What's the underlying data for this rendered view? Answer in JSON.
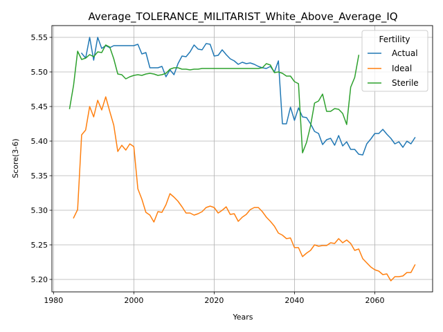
{
  "chart_data": {
    "type": "line",
    "title": "Average_TOLERANCE_MILITARIST_White_Above_Average_IQ",
    "xlabel": "Years",
    "ylabel": "Score(3-6)",
    "xlim": [
      1979.6,
      2074.4
    ],
    "ylim": [
      5.182,
      5.567
    ],
    "xticks": [
      1980,
      2000,
      2020,
      2040,
      2060
    ],
    "yticks": [
      5.2,
      5.25,
      5.3,
      5.35,
      5.4,
      5.45,
      5.5,
      5.55
    ],
    "ytick_labels": [
      "5.20",
      "5.25",
      "5.30",
      "5.35",
      "5.40",
      "5.45",
      "5.50",
      "5.55"
    ],
    "grid": true,
    "legend": {
      "title": "Fertility",
      "placement": "top-right"
    },
    "series": [
      {
        "name": "Actual",
        "color": "#1f77b4",
        "x": [
          1987,
          1988,
          1989,
          1990,
          1991,
          1992,
          1993,
          1994,
          1995,
          1996,
          1997,
          1998,
          1999,
          2000,
          2001,
          2002,
          2003,
          2004,
          2005,
          2006,
          2007,
          2008,
          2009,
          2010,
          2011,
          2012,
          2013,
          2014,
          2015,
          2016,
          2017,
          2018,
          2019,
          2020,
          2021,
          2022,
          2023,
          2024,
          2025,
          2026,
          2027,
          2028,
          2029,
          2030,
          2031,
          2032,
          2033,
          2034,
          2035,
          2036,
          2037,
          2038,
          2039,
          2040,
          2041,
          2042,
          2043,
          2044,
          2045,
          2046,
          2047,
          2048,
          2049,
          2050,
          2051,
          2052,
          2053,
          2054,
          2055,
          2056,
          2057,
          2058,
          2059,
          2060,
          2061,
          2062,
          2063,
          2064,
          2065,
          2066,
          2067,
          2068,
          2069,
          2070
        ],
        "y": [
          5.527,
          5.52,
          5.55,
          5.517,
          5.55,
          5.534,
          5.538,
          5.535,
          5.538,
          5.538,
          5.538,
          5.538,
          5.538,
          5.538,
          5.54,
          5.526,
          5.528,
          5.506,
          5.506,
          5.506,
          5.508,
          5.493,
          5.503,
          5.496,
          5.512,
          5.523,
          5.522,
          5.529,
          5.539,
          5.533,
          5.532,
          5.541,
          5.54,
          5.523,
          5.524,
          5.532,
          5.525,
          5.519,
          5.516,
          5.511,
          5.514,
          5.512,
          5.513,
          5.511,
          5.508,
          5.506,
          5.505,
          5.508,
          5.5,
          5.516,
          5.425,
          5.425,
          5.449,
          5.43,
          5.448,
          5.435,
          5.434,
          5.425,
          5.414,
          5.411,
          5.395,
          5.402,
          5.404,
          5.394,
          5.408,
          5.393,
          5.399,
          5.388,
          5.388,
          5.381,
          5.38,
          5.396,
          5.403,
          5.411,
          5.411,
          5.417,
          5.41,
          5.404,
          5.396,
          5.399,
          5.391,
          5.4,
          5.396,
          5.405
        ]
      },
      {
        "name": "Ideal",
        "color": "#ff7f0e",
        "x": [
          1985,
          1986,
          1987,
          1988,
          1989,
          1990,
          1991,
          1992,
          1993,
          1994,
          1995,
          1996,
          1997,
          1998,
          1999,
          2000,
          2001,
          2002,
          2003,
          2004,
          2005,
          2006,
          2007,
          2008,
          2009,
          2010,
          2011,
          2012,
          2013,
          2014,
          2015,
          2016,
          2017,
          2018,
          2019,
          2020,
          2021,
          2022,
          2023,
          2024,
          2025,
          2026,
          2027,
          2028,
          2029,
          2030,
          2031,
          2032,
          2033,
          2034,
          2035,
          2036,
          2037,
          2038,
          2039,
          2040,
          2041,
          2042,
          2043,
          2044,
          2045,
          2046,
          2047,
          2048,
          2049,
          2050,
          2051,
          2052,
          2053,
          2054,
          2055,
          2056,
          2057,
          2058,
          2059,
          2060,
          2061,
          2062,
          2063,
          2064,
          2065,
          2066,
          2067,
          2068,
          2069,
          2070
        ],
        "y": [
          5.289,
          5.301,
          5.409,
          5.416,
          5.45,
          5.435,
          5.459,
          5.445,
          5.464,
          5.443,
          5.423,
          5.385,
          5.394,
          5.387,
          5.396,
          5.392,
          5.331,
          5.316,
          5.297,
          5.293,
          5.283,
          5.298,
          5.297,
          5.308,
          5.324,
          5.319,
          5.313,
          5.305,
          5.296,
          5.296,
          5.293,
          5.295,
          5.298,
          5.304,
          5.306,
          5.304,
          5.296,
          5.3,
          5.305,
          5.294,
          5.295,
          5.284,
          5.29,
          5.294,
          5.301,
          5.304,
          5.304,
          5.298,
          5.29,
          5.284,
          5.277,
          5.267,
          5.264,
          5.259,
          5.26,
          5.246,
          5.246,
          5.233,
          5.238,
          5.242,
          5.25,
          5.248,
          5.249,
          5.249,
          5.253,
          5.252,
          5.259,
          5.253,
          5.257,
          5.252,
          5.242,
          5.244,
          5.23,
          5.224,
          5.218,
          5.214,
          5.212,
          5.207,
          5.208,
          5.198,
          5.204,
          5.204,
          5.205,
          5.21,
          5.21,
          5.221
        ]
      },
      {
        "name": "Sterile",
        "color": "#2ca02c",
        "x": [
          1984,
          1985,
          1986,
          1987,
          1988,
          1989,
          1990,
          1991,
          1992,
          1993,
          1994,
          1995,
          1996,
          1997,
          1998,
          1999,
          2000,
          2001,
          2002,
          2003,
          2004,
          2005,
          2006,
          2007,
          2008,
          2009,
          2010,
          2011,
          2012,
          2013,
          2014,
          2015,
          2016,
          2017,
          2018,
          2019,
          2020,
          2021,
          2022,
          2023,
          2024,
          2025,
          2026,
          2027,
          2028,
          2029,
          2030,
          2031,
          2032,
          2033,
          2034,
          2035,
          2036,
          2037,
          2038,
          2039,
          2040,
          2041,
          2042,
          2043,
          2044,
          2045,
          2046,
          2047,
          2048,
          2049,
          2050,
          2051,
          2052,
          2053,
          2054,
          2055,
          2056
        ],
        "y": [
          5.447,
          5.481,
          5.53,
          5.518,
          5.52,
          5.525,
          5.522,
          5.529,
          5.528,
          5.539,
          5.536,
          5.519,
          5.497,
          5.496,
          5.49,
          5.493,
          5.495,
          5.496,
          5.495,
          5.497,
          5.498,
          5.497,
          5.495,
          5.496,
          5.498,
          5.504,
          5.506,
          5.506,
          5.504,
          5.504,
          5.503,
          5.504,
          5.504,
          5.505,
          5.505,
          5.505,
          5.505,
          5.505,
          5.505,
          5.505,
          5.505,
          5.505,
          5.505,
          5.505,
          5.505,
          5.505,
          5.505,
          5.505,
          5.506,
          5.512,
          5.51,
          5.499,
          5.5,
          5.498,
          5.494,
          5.494,
          5.486,
          5.483,
          5.383,
          5.398,
          5.422,
          5.455,
          5.458,
          5.468,
          5.443,
          5.443,
          5.447,
          5.446,
          5.44,
          5.424,
          5.478,
          5.492,
          5.524
        ]
      }
    ]
  }
}
